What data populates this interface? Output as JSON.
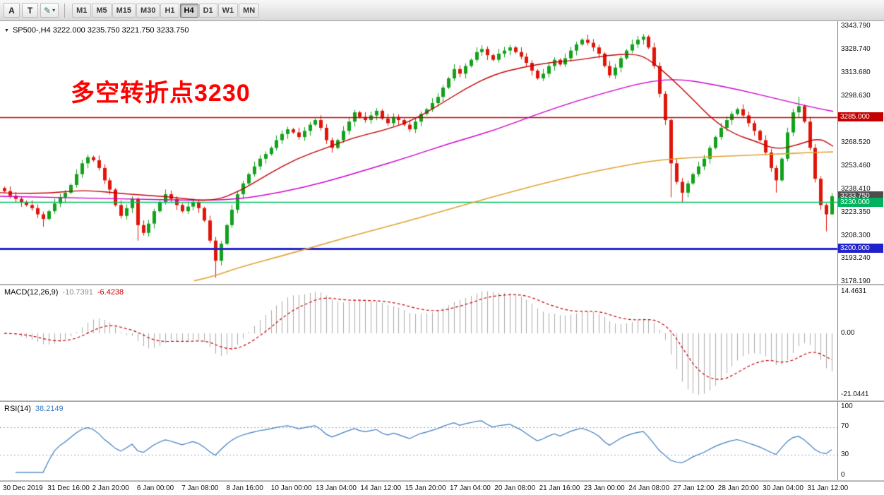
{
  "toolbar": {
    "buttons": [
      {
        "label": "A"
      },
      {
        "label": "T"
      }
    ],
    "timeframes": [
      "M1",
      "M5",
      "M15",
      "M30",
      "H1",
      "H4",
      "D1",
      "W1",
      "MN"
    ],
    "active_timeframe": "H4"
  },
  "main_chart": {
    "symbol_line": "SP500-,H4 3222.000 3235.750 3221.750 3233.750",
    "annotation": "多空转折点3230",
    "annotation_color": "#ff0000",
    "price_axis": [
      "3343.790",
      "3328.740",
      "3313.680",
      "3298.630",
      "3283.570",
      "3268.520",
      "3253.460",
      "3238.410",
      "3223.350",
      "3208.300",
      "3193.240",
      "3178.190"
    ],
    "price_tags": [
      {
        "text": "3285.000",
        "price": 3285.0,
        "color": "#c40000"
      },
      {
        "text": "3233.750",
        "price": 3233.75,
        "color": "#4d4d4d"
      },
      {
        "text": "3230.000",
        "price": 3230.0,
        "color": "#00b25d"
      },
      {
        "text": "3200.000",
        "price": 3200.0,
        "color": "#2222cc"
      }
    ]
  },
  "macd": {
    "label": "MACD(12,26,9)",
    "value_main": "-10.7391",
    "value_signal": "-6.4238",
    "axis": [
      "14.4631",
      "0.00",
      "-21.0441"
    ],
    "max": 14.4631,
    "min": -21.0441
  },
  "rsi": {
    "label": "RSI(14)",
    "value": "38.2149",
    "axis": [
      "100",
      "70",
      "30",
      "0"
    ],
    "levels": [
      70,
      30
    ]
  },
  "time_axis": [
    "30 Dec 2019",
    "31 Dec 16:00",
    "2 Jan 20:00",
    "6 Jan 00:00",
    "7 Jan 08:00",
    "8 Jan 16:00",
    "10 Jan 00:00",
    "13 Jan 04:00",
    "14 Jan 12:00",
    "15 Jan 20:00",
    "17 Jan 04:00",
    "20 Jan 08:00",
    "21 Jan 16:00",
    "23 Jan 00:00",
    "24 Jan 08:00",
    "27 Jan 12:00",
    "28 Jan 20:00",
    "30 Jan 04:00",
    "31 Jan 12:00"
  ],
  "chart_data": {
    "type": "candlestick",
    "symbol": "SP500-",
    "timeframe": "H4",
    "price_range": [
      3177,
      3347
    ],
    "up_color": "#12a11b",
    "down_color": "#e01408",
    "open_first": 3239,
    "closes": [
      3237,
      3234,
      3232,
      3230,
      3228,
      3226,
      3222,
      3219,
      3224,
      3229,
      3233,
      3236,
      3241,
      3248,
      3255,
      3259,
      3257,
      3252,
      3244,
      3238,
      3228,
      3221,
      3226,
      3232,
      3215,
      3210,
      3216,
      3224,
      3230,
      3235,
      3232,
      3228,
      3224,
      3227,
      3230,
      3226,
      3218,
      3205,
      3192,
      3203,
      3215,
      3225,
      3235,
      3242,
      3248,
      3253,
      3258,
      3261,
      3265,
      3270,
      3274,
      3277,
      3275,
      3272,
      3276,
      3280,
      3283,
      3278,
      3270,
      3265,
      3270,
      3276,
      3282,
      3288,
      3285,
      3283,
      3286,
      3289,
      3284,
      3281,
      3285,
      3283,
      3280,
      3277,
      3282,
      3287,
      3290,
      3294,
      3298,
      3304,
      3310,
      3316,
      3313,
      3318,
      3322,
      3327,
      3329,
      3325,
      3322,
      3326,
      3328,
      3330,
      3327,
      3324,
      3320,
      3315,
      3310,
      3313,
      3318,
      3322,
      3319,
      3323,
      3328,
      3332,
      3335,
      3333,
      3330,
      3326,
      3318,
      3312,
      3317,
      3323,
      3328,
      3332,
      3335,
      3337,
      3330,
      3318,
      3300,
      3283,
      3255,
      3243,
      3236,
      3242,
      3248,
      3253,
      3258,
      3265,
      3272,
      3278,
      3283,
      3287,
      3290,
      3286,
      3281,
      3276,
      3270,
      3262,
      3252,
      3244,
      3258,
      3275,
      3288,
      3292,
      3282,
      3265,
      3245,
      3228,
      3222,
      3233.75
    ],
    "wick_overrides": {
      "7": {
        "low": 3214
      },
      "24": {
        "low": 3205
      },
      "38": {
        "low": 3181
      },
      "120": {
        "low": 3233
      },
      "122": {
        "low": 3230
      },
      "139": {
        "low": 3236
      },
      "143": {
        "high": 3298
      },
      "148": {
        "low": 3211
      }
    },
    "last_candle": {
      "o": 3222.0,
      "h": 3235.75,
      "l": 3221.75,
      "c": 3233.75
    },
    "hlines": [
      {
        "price": 3285,
        "color": "#c40000",
        "width": 1.4
      },
      {
        "price": 3230,
        "color": "#00c160",
        "width": 1.6
      },
      {
        "price": 3200,
        "color": "#2222cc",
        "width": 3
      }
    ],
    "ma_lines": [
      {
        "name": "slow-ma",
        "color": "#dfa231",
        "width": 1.6,
        "points": [
          [
            0.233,
            3179
          ],
          [
            0.254,
            3181.5
          ],
          [
            0.288,
            3187.9
          ],
          [
            0.339,
            3195.2
          ],
          [
            0.39,
            3203
          ],
          [
            0.441,
            3210.8
          ],
          [
            0.492,
            3218
          ],
          [
            0.542,
            3225.8
          ],
          [
            0.593,
            3233.6
          ],
          [
            0.644,
            3240.9
          ],
          [
            0.695,
            3247.7
          ],
          [
            0.746,
            3253.2
          ],
          [
            0.78,
            3256.4
          ],
          [
            0.814,
            3258.2
          ],
          [
            0.847,
            3259.2
          ],
          [
            0.89,
            3260
          ],
          [
            0.932,
            3261
          ],
          [
            0.975,
            3262
          ],
          [
            1.0,
            3262.4
          ]
        ]
      },
      {
        "name": "medium-ma",
        "color": "#cc00cc",
        "width": 1.4,
        "points": [
          [
            0.0,
            3233.7
          ],
          [
            0.085,
            3232.7
          ],
          [
            0.17,
            3231.8
          ],
          [
            0.237,
            3230.9
          ],
          [
            0.288,
            3231.8
          ],
          [
            0.339,
            3236.4
          ],
          [
            0.39,
            3242.8
          ],
          [
            0.441,
            3251
          ],
          [
            0.492,
            3259.3
          ],
          [
            0.542,
            3268.4
          ],
          [
            0.593,
            3276.2
          ],
          [
            0.644,
            3286.7
          ],
          [
            0.695,
            3295.9
          ],
          [
            0.746,
            3303.6
          ],
          [
            0.78,
            3308.2
          ],
          [
            0.814,
            3309.6
          ],
          [
            0.847,
            3306.9
          ],
          [
            0.89,
            3302.3
          ],
          [
            0.932,
            3296.8
          ],
          [
            0.975,
            3291.3
          ],
          [
            1.0,
            3288.6
          ]
        ]
      },
      {
        "name": "fast-ma",
        "color": "#c00000",
        "width": 1.4,
        "points": [
          [
            0.0,
            3236
          ],
          [
            0.05,
            3235
          ],
          [
            0.1,
            3238
          ],
          [
            0.152,
            3235
          ],
          [
            0.203,
            3233.5
          ],
          [
            0.254,
            3230
          ],
          [
            0.288,
            3237
          ],
          [
            0.322,
            3248
          ],
          [
            0.356,
            3258
          ],
          [
            0.39,
            3264.7
          ],
          [
            0.424,
            3271.6
          ],
          [
            0.458,
            3276
          ],
          [
            0.492,
            3282
          ],
          [
            0.525,
            3292
          ],
          [
            0.559,
            3303.5
          ],
          [
            0.593,
            3312.6
          ],
          [
            0.627,
            3317.2
          ],
          [
            0.661,
            3320.4
          ],
          [
            0.695,
            3321.8
          ],
          [
            0.729,
            3325
          ],
          [
            0.763,
            3326
          ],
          [
            0.78,
            3322
          ],
          [
            0.805,
            3310.4
          ],
          [
            0.831,
            3296.7
          ],
          [
            0.856,
            3283
          ],
          [
            0.881,
            3273.9
          ],
          [
            0.907,
            3269.3
          ],
          [
            0.932,
            3263.8
          ],
          [
            0.958,
            3267
          ],
          [
            0.983,
            3271.6
          ],
          [
            1.0,
            3266
          ]
        ]
      }
    ],
    "macd_hist_color": "#ababab",
    "macd_signal_color": "#c40000",
    "rsi_color": "#3b7bbf",
    "rsi_level_color": "#9aa7c7"
  }
}
